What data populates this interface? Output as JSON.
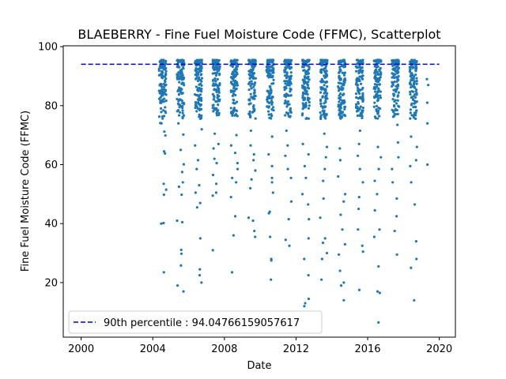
{
  "chart_data": {
    "type": "scatter",
    "title": "BLAEBERRY - Fine Fuel Moisture Code (FFMC), Scatterplot",
    "xlabel": "Date",
    "ylabel": "Fine Fuel Moisture Code (FFMC)",
    "xlim": [
      1999.0,
      2020.9
    ],
    "ylim": [
      1.5,
      100.3
    ],
    "xticks": [
      2000,
      2004,
      2008,
      2012,
      2016,
      2020
    ],
    "yticks": [
      20,
      40,
      60,
      80,
      100
    ],
    "grid": false,
    "legend_position": "lower-left",
    "series": [
      {
        "name": "FFMC",
        "color": "#1f77b4",
        "seasons": [
          {
            "year": 2004,
            "x_range": [
              2004.35,
              2004.75
            ],
            "values": [
              53.5,
              40.0,
              40.2,
              51.5,
              49.8,
              23.5,
              74.1,
              69.9,
              64.5,
              63.8,
              71.2,
              74.0
            ]
          },
          {
            "year": 2005,
            "x_range": [
              2005.35,
              2005.75
            ],
            "values": [
              31.1,
              29.8,
              25.8,
              19.0,
              17.0,
              40.5,
              41.0,
              49.8,
              52.5,
              54.0,
              57.5,
              60.1,
              65.0,
              70.2,
              74.0
            ]
          },
          {
            "year": 2006,
            "x_range": [
              2006.35,
              2006.75
            ],
            "values": [
              22.5,
              24.5,
              20.0,
              35.0,
              45.5,
              47.0,
              50.5,
              53.0,
              58.5,
              61.5,
              66.5,
              72.0
            ]
          },
          {
            "year": 2007,
            "x_range": [
              2007.35,
              2007.75
            ],
            "values": [
              31.0,
              49.5,
              50.5,
              53.5,
              56.5,
              60.5,
              62.0,
              65.5,
              67.0,
              70.5
            ]
          },
          {
            "year": 2008,
            "x_range": [
              2008.35,
              2008.75
            ],
            "values": [
              23.5,
              36.0,
              42.5,
              49.0,
              54.0,
              55.5,
              58.5,
              60.5,
              64.0,
              66.5,
              70.0
            ]
          },
          {
            "year": 2009,
            "x_range": [
              2009.35,
              2009.75
            ],
            "values": [
              35.5,
              37.5,
              41.0,
              42.0,
              52.0,
              55.0,
              58.0,
              61.5,
              63.5,
              66.5,
              71.5
            ]
          },
          {
            "year": 2010,
            "x_range": [
              2010.35,
              2010.75
            ],
            "values": [
              21.0,
              27.5,
              28.0,
              35.5,
              44.0,
              43.5,
              50.5,
              54.0,
              55.5,
              59.5,
              63.5,
              69.5
            ]
          },
          {
            "year": 2011,
            "x_range": [
              2011.35,
              2011.75
            ],
            "values": [
              32.5,
              34.5,
              41.5,
              47.5,
              55.5,
              58.5,
              63.0,
              66.5,
              71.5
            ]
          },
          {
            "year": 2012,
            "x_range": [
              2012.35,
              2012.75
            ],
            "values": [
              12.0,
              13.0,
              14.5,
              22.5,
              28.0,
              35.0,
              41.5,
              46.5,
              50.0,
              55.5,
              59.5,
              63.5,
              67.0
            ]
          },
          {
            "year": 2013,
            "x_range": [
              2013.35,
              2013.75
            ],
            "values": [
              21.0,
              28.0,
              30.0,
              33.5,
              35.0,
              42.0,
              48.5,
              54.5,
              58.5,
              62.5,
              66.0,
              70.5
            ]
          },
          {
            "year": 2014,
            "x_range": [
              2014.35,
              2014.75
            ],
            "values": [
              14.0,
              19.0,
              20.0,
              24.0,
              29.5,
              33.0,
              38.0,
              43.0,
              47.5,
              50.0,
              56.0,
              61.5,
              65.5
            ]
          },
          {
            "year": 2015,
            "x_range": [
              2015.35,
              2015.75
            ],
            "values": [
              17.5,
              30.5,
              32.5,
              38.0,
              45.0,
              49.0,
              54.0,
              58.5,
              63.0,
              67.0,
              71.5
            ]
          },
          {
            "year": 2016,
            "x_range": [
              2016.35,
              2016.75
            ],
            "values": [
              6.5,
              16.5,
              17.0,
              25.5,
              35.5,
              38.0,
              44.5,
              50.0,
              54.5,
              58.5,
              62.5,
              66.0
            ]
          },
          {
            "year": 2017,
            "x_range": [
              2017.35,
              2017.75
            ],
            "values": [
              29.5,
              37.5,
              42.5,
              48.5,
              54.0,
              58.5,
              62.5,
              67.5,
              73.5
            ]
          },
          {
            "year": 2018,
            "x_range": [
              2018.35,
              2018.75
            ],
            "values": [
              14.0,
              25.0,
              28.0,
              34.0,
              46.5,
              54.0,
              59.5,
              61.5,
              66.0,
              69.5
            ]
          },
          {
            "year": 2019,
            "x_range": [
              2019.3,
              2019.4
            ],
            "values": [
              60.0,
              74.0,
              81.0,
              87.0,
              89.0
            ]
          }
        ]
      }
    ],
    "reference_line": {
      "label": "90th percentile : 94.04766159057617",
      "value": 94.04766159057617,
      "x_range": [
        2000,
        2020
      ],
      "color": "#0000cc",
      "style": "dashed"
    }
  }
}
